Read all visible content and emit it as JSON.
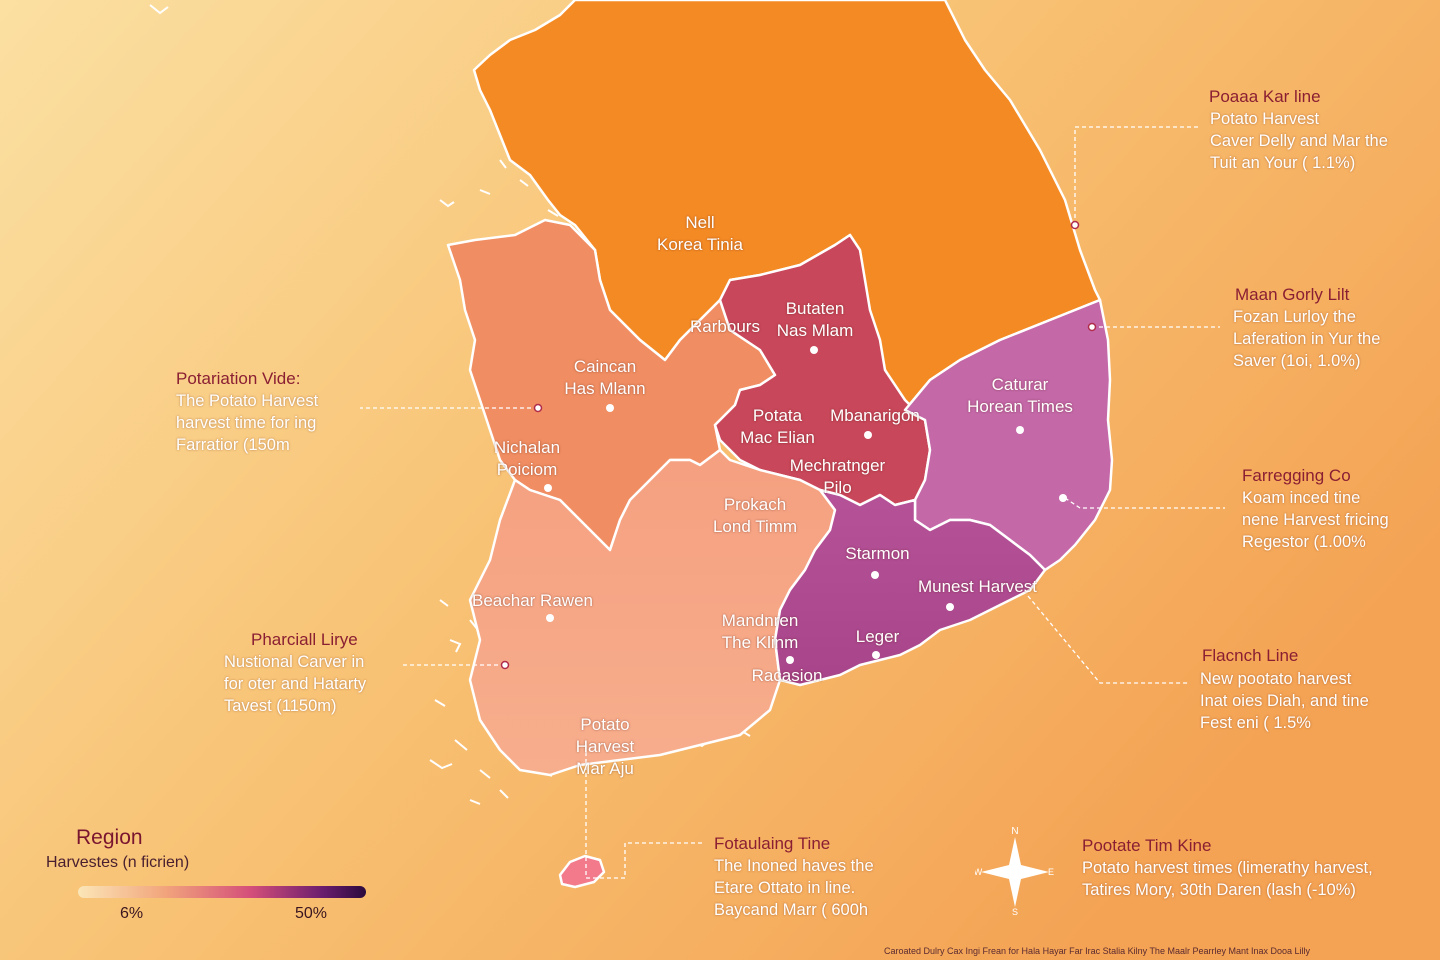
{
  "regions": [
    {
      "id": "north",
      "label": "Nell\nKorea Tinia",
      "color": "#f48a24"
    },
    {
      "id": "west",
      "label": "Caincan\nHas Mlann",
      "color": "#f08d62"
    },
    {
      "id": "center-red",
      "label": "Butaten\nNas Mlam",
      "color": "#c8475a"
    },
    {
      "id": "east",
      "label": "Caturar\nHorean Times",
      "color": "#c468a8"
    },
    {
      "id": "southwest",
      "label": "Prokach\nLond Timm",
      "color": "#f6a284"
    },
    {
      "id": "southeast",
      "label": "Starmon",
      "color": "#b04e92"
    },
    {
      "id": "jeju",
      "label": "",
      "color": "#f27a8a"
    }
  ],
  "place_labels": {
    "rarbours": "Rarbours",
    "potata": "Potata\nMac Elian",
    "mbanangon": "Mbanarigon",
    "nichalan": "Nichalan\nPoiciom",
    "mechratnger": "Mechratnger\nPilo",
    "munest": "Munest Harvest",
    "beachar": "Beachar Rawen",
    "mandnren": "Mandnren\nThe Klinm",
    "leger": "Leger",
    "racasion": "Racasion",
    "potato_harvest": "Potato\nHarvest\nMar Aju"
  },
  "annotations": [
    {
      "id": "top-right",
      "title": "Poaaa Kar line",
      "body": "Potato Harvest\nCaver Delly and Mar the\nTuit an Your ( 1.1%)"
    },
    {
      "id": "right-1",
      "title": "Maan Gorly Lilt",
      "body": "Fozan Lurloy the\nLaferation in Yur the\nSaver (1oi, 1.0%)"
    },
    {
      "id": "right-2",
      "title": "Farregging Co",
      "body": "Koam inced tine\nnene Harvest fricing\nRegestor (1.00%"
    },
    {
      "id": "right-3",
      "title": "Flacnch Line",
      "body": "New pootato harvest\nInat oies Diah, and tine\nFest eni ( 1.5%"
    },
    {
      "id": "left-1",
      "title": "Potariation Vide:",
      "body": "The Potato Harvest\nharvest time for ing\nFarratior (150m"
    },
    {
      "id": "left-2",
      "title": "Pharciall Lirye",
      "body": "Nustional Carver in\nfor oter and Hatarty\nTavest (1150m)"
    },
    {
      "id": "bottom-1",
      "title": "Fotaulaing Tine",
      "body": "The Inoned haves the\nEtare Ottato in line.\nBaycand Marr ( 600h"
    },
    {
      "id": "bottom-2",
      "title": "Pootate Tim Kine",
      "body": "Potato harvest times (limerathy harvest,\nTatires Mory, 30th Daren (lash (-10%)"
    }
  ],
  "legend": {
    "title": "Region",
    "subtitle": "Harvestes (n ficrien)",
    "min": "6%",
    "max": "50%",
    "colors": [
      "#fbe6b8",
      "#f2a57c",
      "#d44f7a",
      "#6a1d6e",
      "#2b0a3d"
    ]
  },
  "compass": {
    "n": "N",
    "e": "E",
    "s": "S",
    "w": "W"
  },
  "footer": "Caroated Dulry  Cax Ingi Frean for Hala Hayar Far Irac Stalia Kilny The Maalr Pearrley Mant Inax Dooa Lilly",
  "colors": {
    "background_from": "#fbdf9c",
    "background_to": "#f6a55c",
    "border": "#ffffff",
    "leader": "#ffffff",
    "accent": "#8a1f33"
  }
}
